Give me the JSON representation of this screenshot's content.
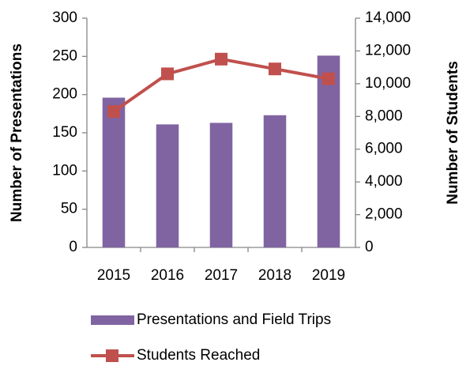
{
  "chart_data": {
    "type": "bar_line",
    "categories": [
      "2015",
      "2016",
      "2017",
      "2018",
      "2019"
    ],
    "series": [
      {
        "name": "Presentations and Field Trips",
        "color": "#8064a2",
        "type": "bar",
        "values": [
          196,
          161,
          163,
          173,
          251
        ]
      },
      {
        "name": "Students Reached",
        "color": "#c0504d",
        "type": "line",
        "axis": "y2",
        "values": [
          8300,
          10600,
          11500,
          10900,
          10300
        ]
      }
    ],
    "y_label": "Number of Presentations",
    "y2_label": "Number of Students",
    "ylim": [
      0,
      300
    ],
    "yticks": [
      0,
      50,
      100,
      150,
      200,
      250,
      300
    ],
    "y2lim": [
      0,
      14000
    ],
    "y2ticks": [
      0,
      {
        "value": 2000,
        "label": "2,000"
      },
      {
        "value": 4000,
        "label": "4,000"
      },
      {
        "value": 6000,
        "label": "6,000"
      },
      {
        "value": 8000,
        "label": "8,000"
      },
      {
        "value": 10000,
        "label": "10,000"
      },
      {
        "value": 12000,
        "label": "12,000"
      },
      {
        "value": 14000,
        "label": "14,000"
      }
    ],
    "grid": false,
    "legend": "bottom"
  }
}
